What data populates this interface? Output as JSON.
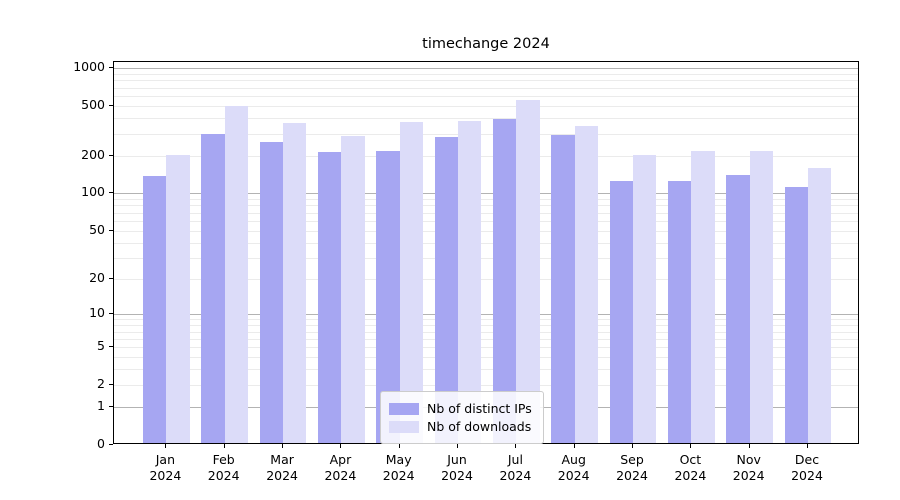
{
  "title": "timechange 2024",
  "chart_data": {
    "type": "bar",
    "title": "timechange 2024",
    "categories": [
      "Jan 2024",
      "Feb 2024",
      "Mar 2024",
      "Apr 2024",
      "May 2024",
      "Jun 2024",
      "Jul 2024",
      "Aug 2024",
      "Sep 2024",
      "Oct 2024",
      "Nov 2024",
      "Dec 2024"
    ],
    "x_tick_lines": [
      [
        "Jan",
        "2024"
      ],
      [
        "Feb",
        "2024"
      ],
      [
        "Mar",
        "2024"
      ],
      [
        "Apr",
        "2024"
      ],
      [
        "May",
        "2024"
      ],
      [
        "Jun",
        "2024"
      ],
      [
        "Jul",
        "2024"
      ],
      [
        "Aug",
        "2024"
      ],
      [
        "Sep",
        "2024"
      ],
      [
        "Oct",
        "2024"
      ],
      [
        "Nov",
        "2024"
      ],
      [
        "Dec",
        "2024"
      ]
    ],
    "series": [
      {
        "name": "Nb of distinct IPs",
        "color": "#a6a6f2",
        "values": [
          133,
          288,
          250,
          206,
          211,
          270,
          377,
          283,
          120,
          121,
          135,
          108
        ]
      },
      {
        "name": "Nb of downloads",
        "color": "#dcdcf9",
        "values": [
          195,
          478,
          355,
          277,
          356,
          366,
          536,
          331,
          196,
          209,
          211,
          155
        ]
      }
    ],
    "yscale": "log1p",
    "y_ticks": [
      0,
      1,
      2,
      5,
      10,
      20,
      50,
      100,
      200,
      500,
      1000
    ],
    "y_minor_ticks": [
      2,
      3,
      4,
      5,
      6,
      7,
      8,
      9,
      20,
      30,
      40,
      50,
      60,
      70,
      80,
      90,
      200,
      300,
      400,
      500,
      600,
      700,
      800,
      900
    ],
    "y_major_gridlines": [
      1,
      10,
      100,
      1000
    ],
    "ylim": [
      0,
      1120
    ],
    "xlabel": "",
    "ylabel": "",
    "grid": "both",
    "legend_position": "lower center"
  },
  "legend": {
    "entries": [
      {
        "label": "Nb of distinct IPs",
        "color": "#a6a6f2"
      },
      {
        "label": "Nb of downloads",
        "color": "#dcdcf9"
      }
    ]
  },
  "colors": {
    "series1": "#a6a6f2",
    "series2": "#dcdcf9",
    "grid_major": "#b3b3b3",
    "grid_minor": "#ebebeb",
    "axis": "#000000",
    "background": "#ffffff"
  }
}
